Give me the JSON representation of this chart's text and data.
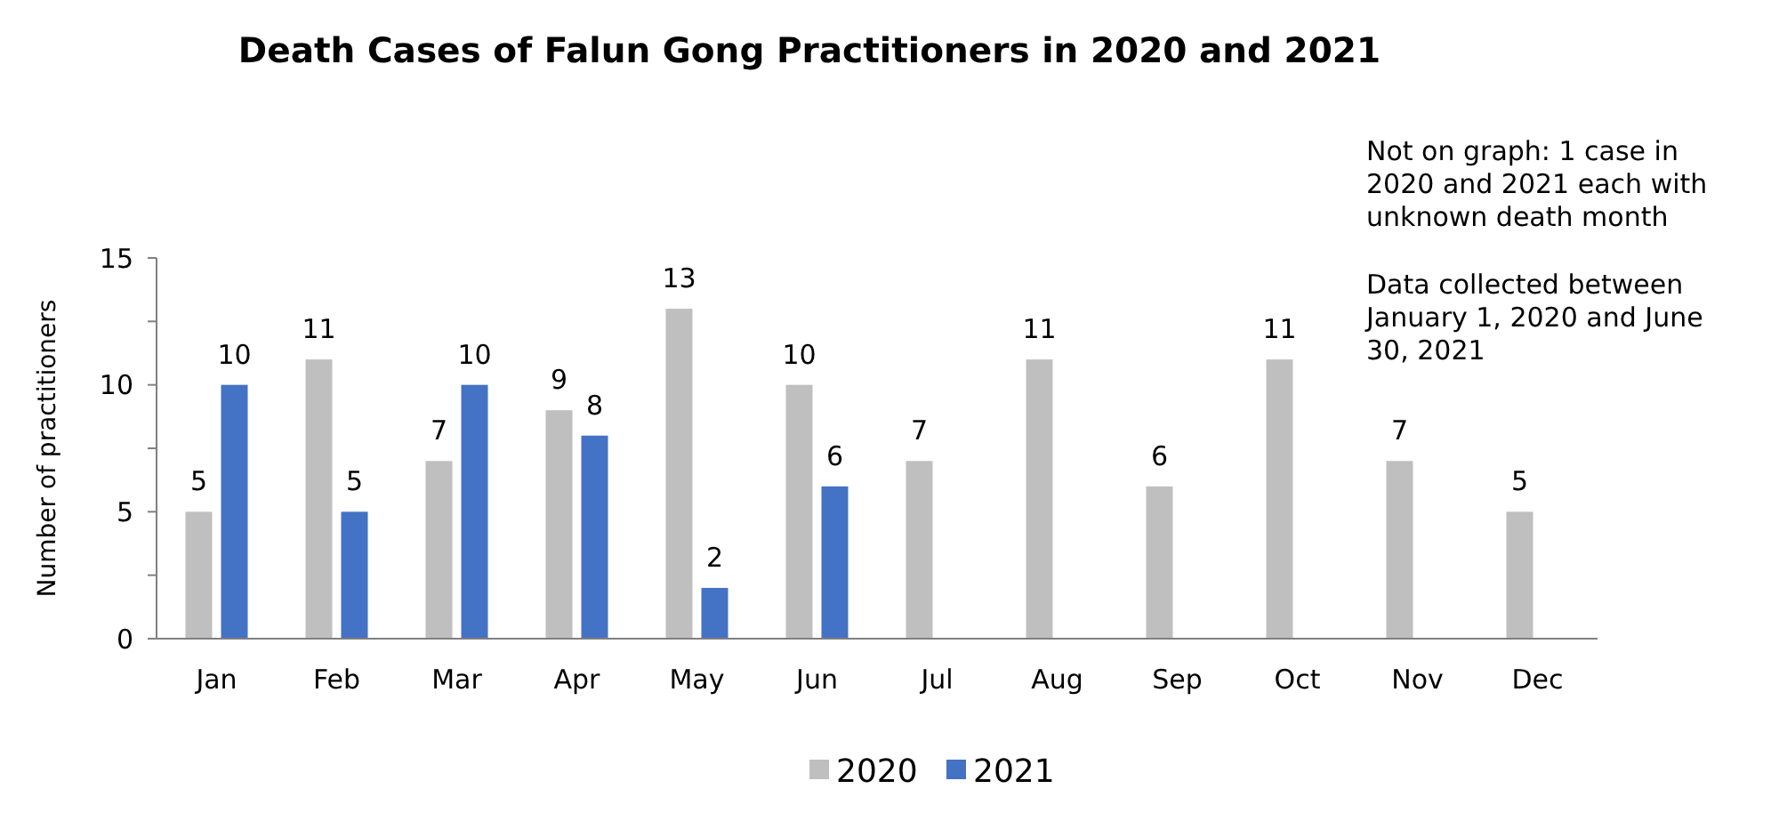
{
  "chart_data": {
    "type": "bar",
    "title": "Death Cases of Falun Gong Practitioners in 2020 and 2021",
    "ylabel": "Number of practitioners",
    "annotations": [
      "Not on graph: 1 case in 2020 and 2021 each with unknown death month",
      "Data collected between January 1, 2020 and June 30, 2021"
    ],
    "categories": [
      "Jan",
      "Feb",
      "Mar",
      "Apr",
      "May",
      "Jun",
      "Jul",
      "Aug",
      "Sep",
      "Oct",
      "Nov",
      "Dec"
    ],
    "series": [
      {
        "name": "2020",
        "color": "#bfbfbf",
        "values": [
          5,
          11,
          7,
          9,
          13,
          10,
          7,
          11,
          6,
          11,
          7,
          5
        ]
      },
      {
        "name": "2021",
        "color": "#4472c4",
        "values": [
          10,
          5,
          10,
          8,
          2,
          6,
          null,
          null,
          null,
          null,
          null,
          null
        ]
      }
    ],
    "ylim": [
      0,
      15
    ],
    "yticks": [
      0,
      {
        "value": 2.5,
        "label": null
      },
      5,
      {
        "value": 7.5,
        "label": null
      },
      10,
      {
        "value": 12.5,
        "label": null
      },
      15
    ],
    "grid": false,
    "legend": "bottom",
    "data_labels": true
  }
}
